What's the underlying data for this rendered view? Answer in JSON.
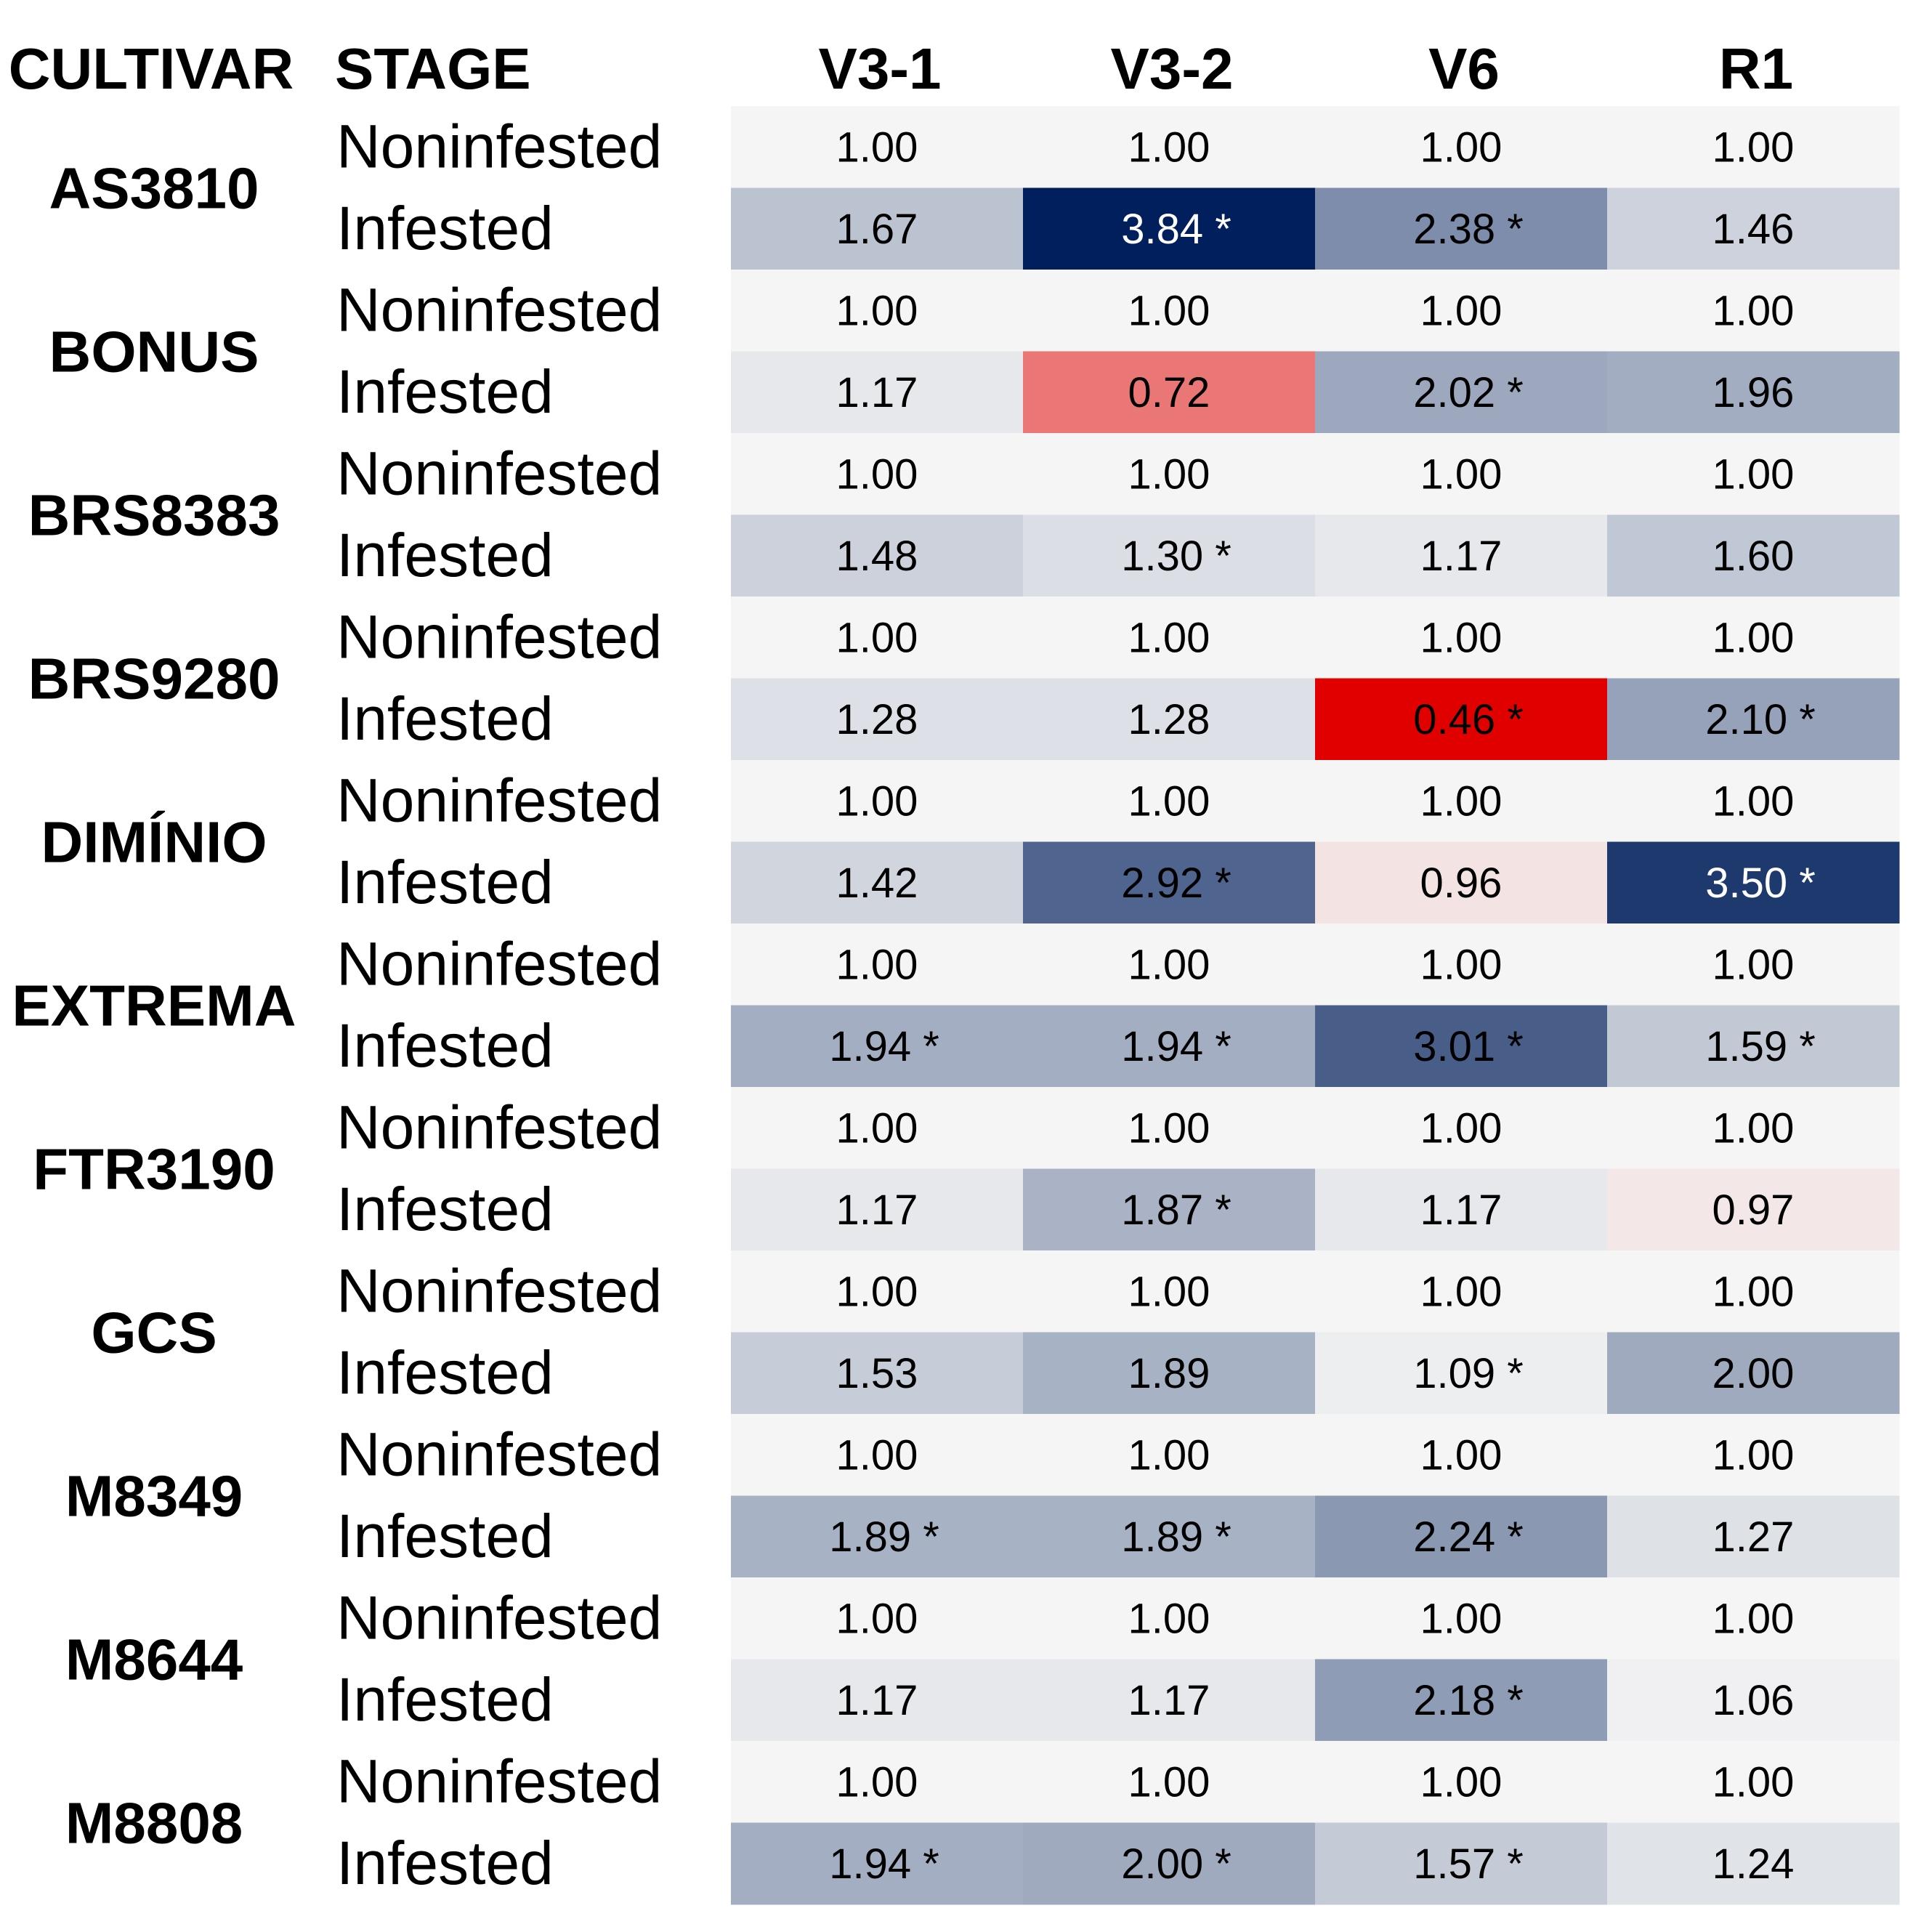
{
  "chart_data": {
    "type": "heatmap",
    "row_header": "CULTIVAR",
    "stage_header": "STAGE",
    "columns": [
      "V3-1",
      "V3-2",
      "V6",
      "R1"
    ],
    "significance_marker": "*",
    "colors": {
      "baseline": "#f5f5f5",
      "high": "#001f5c",
      "low": "#e00000"
    },
    "rows": [
      {
        "cultivar": "AS3810",
        "stages": [
          {
            "stage": "Noninfested",
            "values": [
              1.0,
              1.0,
              1.0,
              1.0
            ],
            "significant": [
              false,
              false,
              false,
              false
            ]
          },
          {
            "stage": "Infested",
            "values": [
              1.67,
              3.84,
              2.38,
              1.46
            ],
            "significant": [
              false,
              true,
              true,
              false
            ]
          }
        ]
      },
      {
        "cultivar": "BONUS",
        "stages": [
          {
            "stage": "Noninfested",
            "values": [
              1.0,
              1.0,
              1.0,
              1.0
            ],
            "significant": [
              false,
              false,
              false,
              false
            ]
          },
          {
            "stage": "Infested",
            "values": [
              1.17,
              0.72,
              2.02,
              1.96
            ],
            "significant": [
              false,
              false,
              true,
              false
            ]
          }
        ]
      },
      {
        "cultivar": "BRS8383",
        "stages": [
          {
            "stage": "Noninfested",
            "values": [
              1.0,
              1.0,
              1.0,
              1.0
            ],
            "significant": [
              false,
              false,
              false,
              false
            ]
          },
          {
            "stage": "Infested",
            "values": [
              1.48,
              1.3,
              1.17,
              1.6
            ],
            "significant": [
              false,
              true,
              false,
              false
            ]
          }
        ]
      },
      {
        "cultivar": "BRS9280",
        "stages": [
          {
            "stage": "Noninfested",
            "values": [
              1.0,
              1.0,
              1.0,
              1.0
            ],
            "significant": [
              false,
              false,
              false,
              false
            ]
          },
          {
            "stage": "Infested",
            "values": [
              1.28,
              1.28,
              0.46,
              2.1
            ],
            "significant": [
              false,
              false,
              true,
              true
            ]
          }
        ]
      },
      {
        "cultivar": "DIMÍNIO",
        "stages": [
          {
            "stage": "Noninfested",
            "values": [
              1.0,
              1.0,
              1.0,
              1.0
            ],
            "significant": [
              false,
              false,
              false,
              false
            ]
          },
          {
            "stage": "Infested",
            "values": [
              1.42,
              2.92,
              0.96,
              3.5
            ],
            "significant": [
              false,
              true,
              false,
              true
            ]
          }
        ]
      },
      {
        "cultivar": "EXTREMA",
        "stages": [
          {
            "stage": "Noninfested",
            "values": [
              1.0,
              1.0,
              1.0,
              1.0
            ],
            "significant": [
              false,
              false,
              false,
              false
            ]
          },
          {
            "stage": "Infested",
            "values": [
              1.94,
              1.94,
              3.01,
              1.59
            ],
            "significant": [
              true,
              true,
              true,
              true
            ]
          }
        ]
      },
      {
        "cultivar": "FTR3190",
        "stages": [
          {
            "stage": "Noninfested",
            "values": [
              1.0,
              1.0,
              1.0,
              1.0
            ],
            "significant": [
              false,
              false,
              false,
              false
            ]
          },
          {
            "stage": "Infested",
            "values": [
              1.17,
              1.87,
              1.17,
              0.97
            ],
            "significant": [
              false,
              true,
              false,
              false
            ]
          }
        ]
      },
      {
        "cultivar": "GCS",
        "stages": [
          {
            "stage": "Noninfested",
            "values": [
              1.0,
              1.0,
              1.0,
              1.0
            ],
            "significant": [
              false,
              false,
              false,
              false
            ]
          },
          {
            "stage": "Infested",
            "values": [
              1.53,
              1.89,
              1.09,
              2.0
            ],
            "significant": [
              false,
              false,
              true,
              false
            ]
          }
        ]
      },
      {
        "cultivar": "M8349",
        "stages": [
          {
            "stage": "Noninfested",
            "values": [
              1.0,
              1.0,
              1.0,
              1.0
            ],
            "significant": [
              false,
              false,
              false,
              false
            ]
          },
          {
            "stage": "Infested",
            "values": [
              1.89,
              1.89,
              2.24,
              1.27
            ],
            "significant": [
              true,
              true,
              true,
              false
            ]
          }
        ]
      },
      {
        "cultivar": "M8644",
        "stages": [
          {
            "stage": "Noninfested",
            "values": [
              1.0,
              1.0,
              1.0,
              1.0
            ],
            "significant": [
              false,
              false,
              false,
              false
            ]
          },
          {
            "stage": "Infested",
            "values": [
              1.17,
              1.17,
              2.18,
              1.06
            ],
            "significant": [
              false,
              false,
              true,
              false
            ]
          }
        ]
      },
      {
        "cultivar": "M8808",
        "stages": [
          {
            "stage": "Noninfested",
            "values": [
              1.0,
              1.0,
              1.0,
              1.0
            ],
            "significant": [
              false,
              false,
              false,
              false
            ]
          },
          {
            "stage": "Infested",
            "values": [
              1.94,
              2.0,
              1.57,
              1.24
            ],
            "significant": [
              true,
              true,
              true,
              false
            ]
          }
        ]
      }
    ]
  }
}
